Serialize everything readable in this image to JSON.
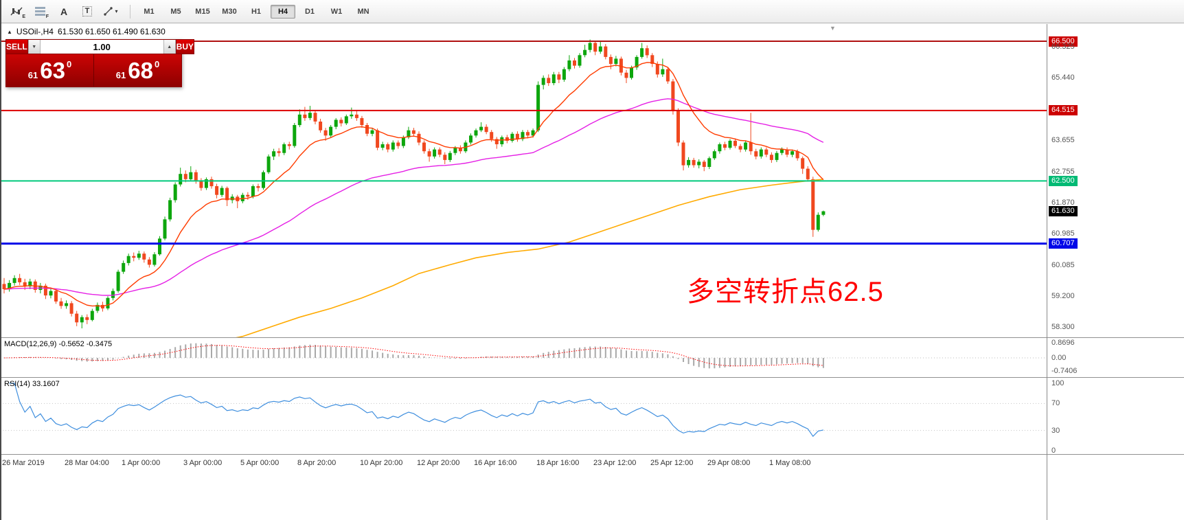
{
  "toolbar": {
    "tools": [
      {
        "name": "indicators-icon",
        "sub": "E"
      },
      {
        "name": "indicator-list-icon",
        "sub": "F"
      },
      {
        "name": "label-tool-icon",
        "glyph": "A"
      },
      {
        "name": "text-tool-icon",
        "glyph": "T"
      },
      {
        "name": "drawing-tools-icon",
        "caret": "▾"
      }
    ],
    "timeframes": [
      "M1",
      "M5",
      "M15",
      "M30",
      "H1",
      "H4",
      "D1",
      "W1",
      "MN"
    ],
    "active_timeframe": "H4"
  },
  "chart_header": {
    "collapse_arrow": "▲",
    "symbol": "USOil-,H4",
    "ohlc": "61.530 61.650 61.490 61.630"
  },
  "trade_panel": {
    "sell_label": "SELL",
    "buy_label": "BUY",
    "volume": "1.00",
    "spinner_down": "▼",
    "spinner_up": "▲",
    "bid": {
      "prefix": "61",
      "big": "63",
      "sup": "0"
    },
    "ask": {
      "prefix": "61",
      "big": "68",
      "sup": "0"
    }
  },
  "shift_marker": "▼",
  "chart_data": {
    "type": "candlestick",
    "symbol": "USOil",
    "timeframe": "H4",
    "ylim": [
      57.9,
      66.66
    ],
    "price_axis_labels": [
      {
        "text": "66.500",
        "price": 66.5,
        "style": "red"
      },
      {
        "text": "66.325",
        "price": 66.325,
        "style": "plain"
      },
      {
        "text": "65.440",
        "price": 65.44,
        "style": "plain"
      },
      {
        "text": "64.515",
        "price": 64.515,
        "style": "red"
      },
      {
        "text": "63.655",
        "price": 63.655,
        "style": "plain"
      },
      {
        "text": "62.755",
        "price": 62.755,
        "style": "plain"
      },
      {
        "text": "62.500",
        "price": 62.5,
        "style": "green"
      },
      {
        "text": "61.870",
        "price": 61.87,
        "style": "plain"
      },
      {
        "text": "61.630",
        "price": 61.63,
        "style": "black"
      },
      {
        "text": "60.985",
        "price": 60.985,
        "style": "plain"
      },
      {
        "text": "60.707",
        "price": 60.707,
        "style": "blue"
      },
      {
        "text": "60.085",
        "price": 60.085,
        "style": "plain"
      },
      {
        "text": "59.200",
        "price": 59.2,
        "style": "plain"
      },
      {
        "text": "58.300",
        "price": 58.3,
        "style": "plain"
      }
    ],
    "time_labels": [
      {
        "text": "26 Mar 2019",
        "bar": 0
      },
      {
        "text": "28 Mar 04:00",
        "bar": 12
      },
      {
        "text": "1 Apr 00:00",
        "bar": 23
      },
      {
        "text": "3 Apr 00:00",
        "bar": 35
      },
      {
        "text": "5 Apr 00:00",
        "bar": 46
      },
      {
        "text": "8 Apr 20:00",
        "bar": 57
      },
      {
        "text": "10 Apr 20:00",
        "bar": 69
      },
      {
        "text": "12 Apr 20:00",
        "bar": 80
      },
      {
        "text": "16 Apr 16:00",
        "bar": 91
      },
      {
        "text": "18 Apr 16:00",
        "bar": 103
      },
      {
        "text": "23 Apr 12:00",
        "bar": 114
      },
      {
        "text": "25 Apr 12:00",
        "bar": 125
      },
      {
        "text": "29 Apr 08:00",
        "bar": 136
      },
      {
        "text": "1 May 08:00",
        "bar": 148
      }
    ],
    "hlines": [
      {
        "price": 66.5,
        "color": "#b01010",
        "width": 2
      },
      {
        "price": 64.515,
        "color": "#dd0000",
        "width": 2
      },
      {
        "price": 62.5,
        "color": "#00c97c",
        "width": 2
      },
      {
        "price": 60.707,
        "color": "#0008e8",
        "width": 3
      }
    ],
    "annotation": {
      "text": "多空转折点62.5",
      "color": "#ff0000"
    },
    "colors": {
      "up": "#0da60d",
      "down": "#f0481f",
      "ma_fast": "#ff3c00",
      "ma_mid": "#e520e5",
      "ma_slow": "#ffaa00",
      "macd_hist": "#a8a8a8",
      "macd_signal": "#ff0000",
      "rsi_line": "#3e8ede"
    },
    "ma_slow_points": [
      [
        38,
        57.8
      ],
      [
        46,
        58.05
      ],
      [
        52,
        58.35
      ],
      [
        57,
        58.6
      ],
      [
        63,
        58.85
      ],
      [
        69,
        59.15
      ],
      [
        75,
        59.5
      ],
      [
        80,
        59.85
      ],
      [
        86,
        60.1
      ],
      [
        91,
        60.3
      ],
      [
        97,
        60.45
      ],
      [
        103,
        60.55
      ],
      [
        109,
        60.75
      ],
      [
        114,
        61.0
      ],
      [
        120,
        61.3
      ],
      [
        125,
        61.55
      ],
      [
        130,
        61.8
      ],
      [
        136,
        62.05
      ],
      [
        142,
        62.25
      ],
      [
        148,
        62.38
      ],
      [
        153,
        62.47
      ],
      [
        158,
        62.55
      ]
    ],
    "candles": [
      [
        59.55,
        59.72,
        59.28,
        59.4
      ],
      [
        59.4,
        59.66,
        59.33,
        59.58
      ],
      [
        59.58,
        59.8,
        59.5,
        59.72
      ],
      [
        59.72,
        59.84,
        59.52,
        59.6
      ],
      [
        59.6,
        59.7,
        59.38,
        59.48
      ],
      [
        59.48,
        59.7,
        59.4,
        59.62
      ],
      [
        59.62,
        59.68,
        59.3,
        59.38
      ],
      [
        59.38,
        59.58,
        59.28,
        59.5
      ],
      [
        59.5,
        59.56,
        59.12,
        59.22
      ],
      [
        59.22,
        59.42,
        59.14,
        59.35
      ],
      [
        59.35,
        59.4,
        58.98,
        59.05
      ],
      [
        59.05,
        59.15,
        58.84,
        58.92
      ],
      [
        58.92,
        59.08,
        58.84,
        59.0
      ],
      [
        59.0,
        59.06,
        58.62,
        58.7
      ],
      [
        58.7,
        58.78,
        58.34,
        58.45
      ],
      [
        58.45,
        58.66,
        58.28,
        58.6
      ],
      [
        58.6,
        58.68,
        58.4,
        58.52
      ],
      [
        58.52,
        58.84,
        58.48,
        58.78
      ],
      [
        58.78,
        59.02,
        58.72,
        58.95
      ],
      [
        58.95,
        59.04,
        58.76,
        58.85
      ],
      [
        58.85,
        59.2,
        58.8,
        59.15
      ],
      [
        59.15,
        59.42,
        59.08,
        59.35
      ],
      [
        59.35,
        59.96,
        59.3,
        59.9
      ],
      [
        59.9,
        60.22,
        59.84,
        60.15
      ],
      [
        60.15,
        60.42,
        60.08,
        60.35
      ],
      [
        60.35,
        60.45,
        60.2,
        60.3
      ],
      [
        60.3,
        60.5,
        60.24,
        60.42
      ],
      [
        60.42,
        60.48,
        60.16,
        60.25
      ],
      [
        60.25,
        60.32,
        60.02,
        60.1
      ],
      [
        60.1,
        60.46,
        60.05,
        60.4
      ],
      [
        60.4,
        60.92,
        60.36,
        60.85
      ],
      [
        60.85,
        61.48,
        60.8,
        61.4
      ],
      [
        61.4,
        62.02,
        61.34,
        61.95
      ],
      [
        61.95,
        62.46,
        61.88,
        62.4
      ],
      [
        62.4,
        62.88,
        62.34,
        62.7
      ],
      [
        62.7,
        62.8,
        62.46,
        62.55
      ],
      [
        62.55,
        62.92,
        62.5,
        62.75
      ],
      [
        62.75,
        62.82,
        62.42,
        62.5
      ],
      [
        62.5,
        62.58,
        62.22,
        62.3
      ],
      [
        62.3,
        62.6,
        62.24,
        62.55
      ],
      [
        62.55,
        62.62,
        62.28,
        62.35
      ],
      [
        62.35,
        62.42,
        62.0,
        62.1
      ],
      [
        62.1,
        62.36,
        62.04,
        62.3
      ],
      [
        62.3,
        62.34,
        61.78,
        61.95
      ],
      [
        61.95,
        62.12,
        61.86,
        62.05
      ],
      [
        62.05,
        62.1,
        61.72,
        61.92
      ],
      [
        61.92,
        62.16,
        61.86,
        62.1
      ],
      [
        62.1,
        62.18,
        61.96,
        62.05
      ],
      [
        62.05,
        62.4,
        62.0,
        62.35
      ],
      [
        62.35,
        62.42,
        62.2,
        62.3
      ],
      [
        62.3,
        62.8,
        62.25,
        62.75
      ],
      [
        62.75,
        63.26,
        62.7,
        63.2
      ],
      [
        63.2,
        63.42,
        63.1,
        63.35
      ],
      [
        63.35,
        63.44,
        63.2,
        63.3
      ],
      [
        63.3,
        63.6,
        63.24,
        63.55
      ],
      [
        63.55,
        63.62,
        63.4,
        63.5
      ],
      [
        63.5,
        64.16,
        63.45,
        64.1
      ],
      [
        64.1,
        64.55,
        64.04,
        64.4
      ],
      [
        64.4,
        64.62,
        64.22,
        64.3
      ],
      [
        64.3,
        64.65,
        64.24,
        64.45
      ],
      [
        64.45,
        64.52,
        64.12,
        64.2
      ],
      [
        64.2,
        64.28,
        63.88,
        63.95
      ],
      [
        63.95,
        64.02,
        63.65,
        63.8
      ],
      [
        63.8,
        64.1,
        63.74,
        64.05
      ],
      [
        64.05,
        64.3,
        63.98,
        64.25
      ],
      [
        64.25,
        64.32,
        64.06,
        64.15
      ],
      [
        64.15,
        64.4,
        64.1,
        64.35
      ],
      [
        64.35,
        64.6,
        64.28,
        64.4
      ],
      [
        64.4,
        64.5,
        64.22,
        64.3
      ],
      [
        64.3,
        64.36,
        64.02,
        64.1
      ],
      [
        64.1,
        64.16,
        63.78,
        63.85
      ],
      [
        63.85,
        64.0,
        63.78,
        63.95
      ],
      [
        63.95,
        64.0,
        63.38,
        63.45
      ],
      [
        63.45,
        63.62,
        63.38,
        63.55
      ],
      [
        63.55,
        63.6,
        63.32,
        63.4
      ],
      [
        63.4,
        63.66,
        63.34,
        63.6
      ],
      [
        63.6,
        63.66,
        63.42,
        63.5
      ],
      [
        63.5,
        63.8,
        63.44,
        63.75
      ],
      [
        63.75,
        64.05,
        63.7,
        63.95
      ],
      [
        63.95,
        64.02,
        63.78,
        63.85
      ],
      [
        63.85,
        63.92,
        63.52,
        63.6
      ],
      [
        63.6,
        63.66,
        63.28,
        63.35
      ],
      [
        63.35,
        63.42,
        63.05,
        63.2
      ],
      [
        63.2,
        63.46,
        63.14,
        63.4
      ],
      [
        63.4,
        63.46,
        63.18,
        63.25
      ],
      [
        63.25,
        63.32,
        62.98,
        63.1
      ],
      [
        63.1,
        63.36,
        63.04,
        63.3
      ],
      [
        63.3,
        63.5,
        63.24,
        63.45
      ],
      [
        63.45,
        63.52,
        63.28,
        63.35
      ],
      [
        63.35,
        63.66,
        63.3,
        63.6
      ],
      [
        63.6,
        63.86,
        63.54,
        63.8
      ],
      [
        63.8,
        64.0,
        63.74,
        63.95
      ],
      [
        63.95,
        64.18,
        63.9,
        64.05
      ],
      [
        64.05,
        64.12,
        63.84,
        63.9
      ],
      [
        63.9,
        63.96,
        63.62,
        63.7
      ],
      [
        63.7,
        63.76,
        63.42,
        63.55
      ],
      [
        63.55,
        63.8,
        63.48,
        63.75
      ],
      [
        63.75,
        63.82,
        63.58,
        63.65
      ],
      [
        63.65,
        63.9,
        63.6,
        63.85
      ],
      [
        63.85,
        63.92,
        63.62,
        63.7
      ],
      [
        63.7,
        63.96,
        63.64,
        63.9
      ],
      [
        63.9,
        63.96,
        63.72,
        63.8
      ],
      [
        63.8,
        64.0,
        63.74,
        63.95
      ],
      [
        63.95,
        65.35,
        63.9,
        65.25
      ],
      [
        65.25,
        65.52,
        65.12,
        65.45
      ],
      [
        65.45,
        65.55,
        65.22,
        65.3
      ],
      [
        65.3,
        65.62,
        65.24,
        65.55
      ],
      [
        65.55,
        65.62,
        65.3,
        65.4
      ],
      [
        65.4,
        65.76,
        65.34,
        65.7
      ],
      [
        65.7,
        66.1,
        65.64,
        65.95
      ],
      [
        65.95,
        66.02,
        65.72,
        65.8
      ],
      [
        65.8,
        66.16,
        65.74,
        66.1
      ],
      [
        66.1,
        66.4,
        66.04,
        66.25
      ],
      [
        66.25,
        66.55,
        66.18,
        66.45
      ],
      [
        66.45,
        66.52,
        66.1,
        66.2
      ],
      [
        66.2,
        66.5,
        66.14,
        66.35
      ],
      [
        66.35,
        66.42,
        65.98,
        66.05
      ],
      [
        66.05,
        66.12,
        65.7,
        65.85
      ],
      [
        65.85,
        66.08,
        65.78,
        66.0
      ],
      [
        66.0,
        66.06,
        65.52,
        65.6
      ],
      [
        65.6,
        65.68,
        65.3,
        65.45
      ],
      [
        65.45,
        65.8,
        65.4,
        65.75
      ],
      [
        65.75,
        66.1,
        65.68,
        66.05
      ],
      [
        66.05,
        66.45,
        66.0,
        66.3
      ],
      [
        66.3,
        66.38,
        66.02,
        66.1
      ],
      [
        66.1,
        66.16,
        65.76,
        65.85
      ],
      [
        65.85,
        65.92,
        65.46,
        65.55
      ],
      [
        65.55,
        66.0,
        65.48,
        65.7
      ],
      [
        65.7,
        65.76,
        65.28,
        65.35
      ],
      [
        65.35,
        65.42,
        64.4,
        64.5
      ],
      [
        64.5,
        64.58,
        63.5,
        63.6
      ],
      [
        63.6,
        63.66,
        62.8,
        62.95
      ],
      [
        62.95,
        63.18,
        62.88,
        63.1
      ],
      [
        63.1,
        63.16,
        62.88,
        62.95
      ],
      [
        62.95,
        63.12,
        62.86,
        63.05
      ],
      [
        63.05,
        63.1,
        62.78,
        62.9
      ],
      [
        62.9,
        63.2,
        62.84,
        63.15
      ],
      [
        63.15,
        63.4,
        63.1,
        63.35
      ],
      [
        63.35,
        63.6,
        63.28,
        63.55
      ],
      [
        63.55,
        63.62,
        63.38,
        63.45
      ],
      [
        63.45,
        63.7,
        63.4,
        63.65
      ],
      [
        63.65,
        63.72,
        63.44,
        63.5
      ],
      [
        63.5,
        63.56,
        63.32,
        63.4
      ],
      [
        63.4,
        63.66,
        63.34,
        63.6
      ],
      [
        63.6,
        64.45,
        63.25,
        63.35
      ],
      [
        63.35,
        63.42,
        63.12,
        63.2
      ],
      [
        63.2,
        63.46,
        63.14,
        63.4
      ],
      [
        63.4,
        63.46,
        63.18,
        63.25
      ],
      [
        63.25,
        63.32,
        63.02,
        63.1
      ],
      [
        63.1,
        63.36,
        63.04,
        63.3
      ],
      [
        63.3,
        63.46,
        63.24,
        63.4
      ],
      [
        63.4,
        63.46,
        63.18,
        63.25
      ],
      [
        63.25,
        63.4,
        63.18,
        63.35
      ],
      [
        63.35,
        63.4,
        63.08,
        63.15
      ],
      [
        63.15,
        63.2,
        62.7,
        62.85
      ],
      [
        62.85,
        62.92,
        62.48,
        62.55
      ],
      [
        62.55,
        62.62,
        60.9,
        61.1
      ],
      [
        61.1,
        61.6,
        61.05,
        61.53
      ],
      [
        61.53,
        61.65,
        61.49,
        61.63
      ]
    ],
    "indicators": {
      "macd": {
        "label": "MACD(12,26,9)",
        "current": "-0.5652 -0.3475",
        "fast": 12,
        "slow": 26,
        "signal": 9,
        "axis_labels": [
          "0.8696",
          "0.00",
          "-0.7406"
        ]
      },
      "rsi": {
        "label": "RSI(14)",
        "current": "33.1607",
        "period": 14,
        "levels": [
          70,
          30
        ],
        "axis_labels": [
          "100",
          "70",
          "30",
          "0"
        ]
      }
    }
  }
}
